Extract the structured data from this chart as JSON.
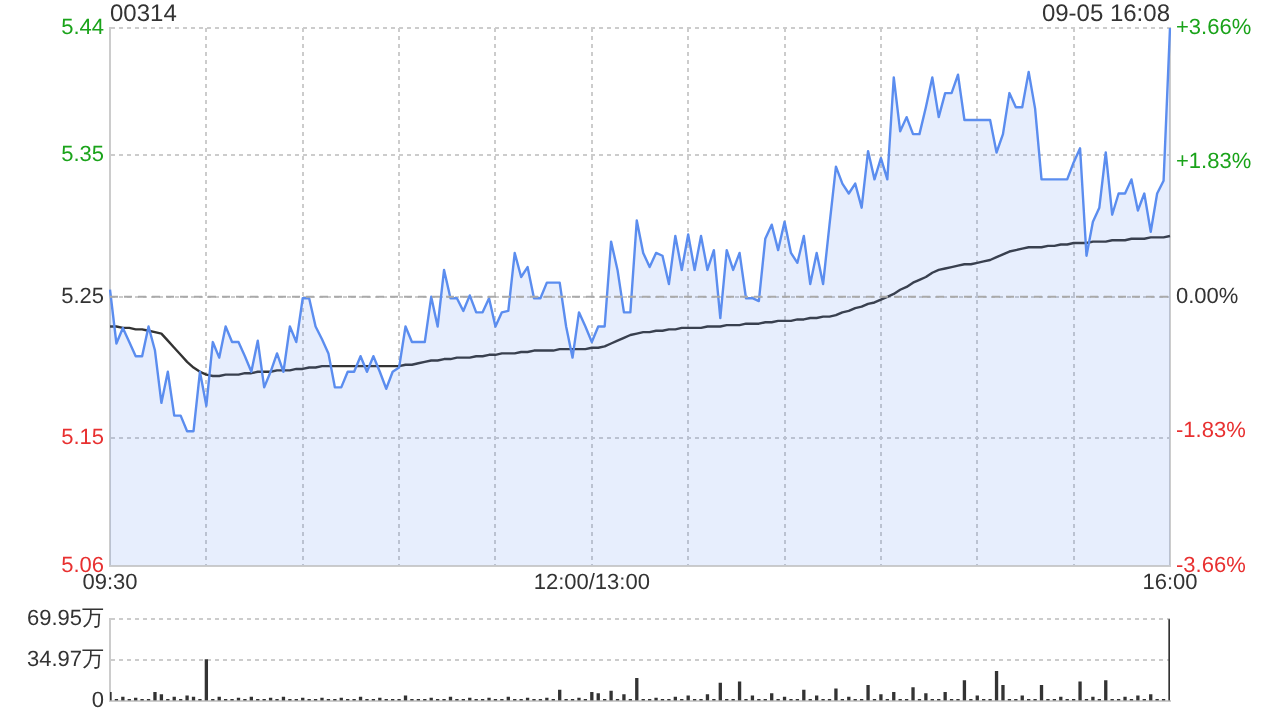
{
  "chart_data": [
    {
      "type": "line",
      "title": "00314",
      "annotations": [
        "09-05 16:08"
      ],
      "categories": [
        "09:30",
        null,
        null,
        null,
        null,
        null,
        null,
        null,
        null,
        null,
        null,
        null,
        null,
        null,
        null,
        null,
        null,
        null,
        null,
        null,
        null,
        null,
        null,
        null,
        null,
        null,
        null,
        null,
        null,
        null,
        null,
        null,
        null,
        null,
        null,
        null,
        null,
        null,
        null,
        null,
        null,
        null,
        null,
        null,
        null,
        null,
        null,
        null,
        null,
        null,
        null,
        null,
        null,
        null,
        null,
        null,
        null,
        null,
        null,
        null,
        null,
        null,
        null,
        null,
        null,
        null,
        null,
        null,
        null,
        null,
        null,
        null,
        null,
        null,
        null,
        "12:00/13:00",
        null,
        null,
        null,
        null,
        null,
        null,
        null,
        null,
        null,
        null,
        null,
        null,
        null,
        null,
        null,
        null,
        null,
        null,
        null,
        null,
        null,
        null,
        null,
        null,
        null,
        null,
        null,
        null,
        null,
        null,
        null,
        null,
        null,
        null,
        null,
        null,
        null,
        null,
        null,
        null,
        null,
        null,
        null,
        null,
        null,
        null,
        null,
        null,
        null,
        null,
        null,
        null,
        null,
        null,
        null,
        null,
        null,
        null,
        null,
        null,
        null,
        null,
        null,
        null,
        null,
        null,
        null,
        null,
        null,
        null,
        null,
        null,
        null,
        null,
        null,
        null,
        null,
        null,
        null,
        null,
        null,
        null,
        null,
        null,
        null,
        null,
        null,
        null,
        null,
        "16:00"
      ],
      "ylim": [
        5.06,
        5.44
      ],
      "yticks": [
        5.06,
        5.15,
        5.25,
        5.35,
        5.44
      ],
      "y2lim": [
        -3.66,
        3.66
      ],
      "y2ticks": [
        {
          "value": -3.66,
          "label": "-3.66%"
        },
        {
          "value": -1.83,
          "label": "-1.83%"
        },
        {
          "value": 0,
          "label": "0.00%"
        },
        {
          "value": 1.83,
          "label": "+1.83%"
        },
        {
          "value": 3.66,
          "label": "+3.66%"
        }
      ],
      "grid": true,
      "marker": "none",
      "ref_lines": [
        {
          "axis": "y",
          "value": 5.25,
          "line_style": "dashed",
          "color": "#aaaaaa"
        }
      ],
      "series": [
        {
          "type": "area",
          "color": "#5b8def",
          "values": [
            5.255,
            5.217,
            5.228,
            5.218,
            5.208,
            5.208,
            5.229,
            5.212,
            5.175,
            5.197,
            5.166,
            5.166,
            5.155,
            5.155,
            5.197,
            5.173,
            5.218,
            5.207,
            5.229,
            5.218,
            5.218,
            5.208,
            5.197,
            5.219,
            5.186,
            5.197,
            5.21,
            5.197,
            5.229,
            5.218,
            5.249,
            5.249,
            5.229,
            5.22,
            5.21,
            5.186,
            5.186,
            5.197,
            5.197,
            5.208,
            5.197,
            5.208,
            5.197,
            5.185,
            5.197,
            5.2,
            5.229,
            5.218,
            5.218,
            5.218,
            5.25,
            5.229,
            5.269,
            5.249,
            5.249,
            5.24,
            5.251,
            5.239,
            5.239,
            5.249,
            5.229,
            5.239,
            5.24,
            5.281,
            5.264,
            5.271,
            5.249,
            5.249,
            5.26,
            5.26,
            5.26,
            5.229,
            5.207,
            5.239,
            5.229,
            5.218,
            5.229,
            5.229,
            5.289,
            5.269,
            5.239,
            5.239,
            5.304,
            5.281,
            5.271,
            5.281,
            5.279,
            5.259,
            5.293,
            5.269,
            5.294,
            5.269,
            5.293,
            5.269,
            5.283,
            5.235,
            5.283,
            5.269,
            5.281,
            5.249,
            5.249,
            5.247,
            5.291,
            5.301,
            5.283,
            5.303,
            5.281,
            5.274,
            5.293,
            5.259,
            5.281,
            5.259,
            5.301,
            5.342,
            5.33,
            5.323,
            5.33,
            5.313,
            5.353,
            5.333,
            5.348,
            5.333,
            5.405,
            5.367,
            5.377,
            5.365,
            5.365,
            5.384,
            5.405,
            5.377,
            5.394,
            5.394,
            5.407,
            5.375,
            5.375,
            5.375,
            5.375,
            5.375,
            5.352,
            5.365,
            5.394,
            5.384,
            5.384,
            5.409,
            5.383,
            5.333,
            5.333,
            5.333,
            5.333,
            5.333,
            5.345,
            5.355,
            5.279,
            5.303,
            5.313,
            5.352,
            5.308,
            5.323,
            5.323,
            5.333,
            5.311,
            5.323,
            5.296,
            5.323,
            5.332,
            5.44
          ]
        },
        {
          "type": "line",
          "color": "#333333",
          "values": [
            5.229,
            5.229,
            5.228,
            5.228,
            5.227,
            5.227,
            5.226,
            5.225,
            5.224,
            5.219,
            5.214,
            5.209,
            5.204,
            5.2,
            5.197,
            5.195,
            5.194,
            5.194,
            5.195,
            5.195,
            5.195,
            5.196,
            5.196,
            5.197,
            5.197,
            5.197,
            5.198,
            5.198,
            5.198,
            5.199,
            5.199,
            5.2,
            5.2,
            5.201,
            5.201,
            5.201,
            5.201,
            5.201,
            5.201,
            5.201,
            5.201,
            5.201,
            5.201,
            5.201,
            5.201,
            5.201,
            5.202,
            5.202,
            5.203,
            5.204,
            5.205,
            5.205,
            5.206,
            5.206,
            5.207,
            5.207,
            5.207,
            5.208,
            5.208,
            5.209,
            5.209,
            5.21,
            5.21,
            5.21,
            5.211,
            5.211,
            5.212,
            5.212,
            5.212,
            5.212,
            5.213,
            5.213,
            5.213,
            5.213,
            5.213,
            5.214,
            5.214,
            5.215,
            5.217,
            5.219,
            5.221,
            5.223,
            5.224,
            5.225,
            5.225,
            5.226,
            5.226,
            5.227,
            5.227,
            5.228,
            5.228,
            5.228,
            5.228,
            5.229,
            5.229,
            5.229,
            5.23,
            5.23,
            5.23,
            5.231,
            5.231,
            5.231,
            5.232,
            5.232,
            5.233,
            5.233,
            5.233,
            5.234,
            5.234,
            5.235,
            5.235,
            5.236,
            5.236,
            5.237,
            5.239,
            5.24,
            5.242,
            5.243,
            5.245,
            5.246,
            5.248,
            5.25,
            5.252,
            5.255,
            5.257,
            5.26,
            5.262,
            5.264,
            5.267,
            5.269,
            5.27,
            5.271,
            5.272,
            5.273,
            5.273,
            5.274,
            5.275,
            5.276,
            5.278,
            5.28,
            5.282,
            5.283,
            5.284,
            5.285,
            5.285,
            5.285,
            5.286,
            5.286,
            5.287,
            5.287,
            5.288,
            5.288,
            5.288,
            5.289,
            5.289,
            5.289,
            5.29,
            5.29,
            5.29,
            5.291,
            5.291,
            5.291,
            5.292,
            5.292,
            5.292,
            5.293
          ]
        }
      ]
    },
    {
      "type": "bar",
      "color": "#333333",
      "tick_labels": "y",
      "grid": "y",
      "categories": [
        null,
        null,
        null,
        null,
        null,
        null,
        null,
        null,
        null,
        null,
        null,
        null,
        null,
        null,
        null,
        null,
        null,
        null,
        null,
        null,
        null,
        null,
        null,
        null,
        null,
        null,
        null,
        null,
        null,
        null,
        null,
        null,
        null,
        null,
        null,
        null,
        null,
        null,
        null,
        null,
        null,
        null,
        null,
        null,
        null,
        null,
        null,
        null,
        null,
        null,
        null,
        null,
        null,
        null,
        null,
        null,
        null,
        null,
        null,
        null,
        null,
        null,
        null,
        null,
        null,
        null,
        null,
        null,
        null,
        null,
        null,
        null,
        null,
        null,
        null,
        null,
        null,
        null,
        null,
        null,
        null,
        null,
        null,
        null,
        null,
        null,
        null,
        null,
        null,
        null,
        null,
        null,
        null,
        null,
        null,
        null,
        null,
        null,
        null,
        null,
        null,
        null,
        null,
        null,
        null,
        null,
        null,
        null,
        null,
        null,
        null,
        null,
        null,
        null,
        null,
        null,
        null,
        null,
        null,
        null,
        null,
        null,
        null,
        null,
        null,
        null,
        null,
        null,
        null,
        null,
        null,
        null,
        null,
        null,
        null,
        null,
        null,
        null,
        null,
        null,
        null,
        null,
        null,
        null,
        null,
        null,
        null,
        null,
        null,
        null,
        null,
        null,
        null,
        null,
        null,
        null,
        null,
        null,
        null,
        null,
        null,
        null,
        null,
        null,
        null,
        null
      ],
      "ylim": [
        0,
        69.95
      ],
      "yticks": [
        0,
        {
          "value": 34.97,
          "label": "34.97万"
        },
        {
          "value": 69.95,
          "label": "69.95万"
        }
      ],
      "values": [
        7,
        1,
        3,
        1,
        2,
        1,
        1,
        7,
        5,
        1,
        3,
        1,
        4,
        3,
        1,
        35,
        1,
        3,
        1,
        1,
        2,
        1,
        3,
        1,
        1,
        2,
        1,
        3,
        1,
        1,
        2,
        1,
        1,
        2,
        1,
        1,
        2,
        1,
        1,
        3,
        1,
        1,
        2,
        1,
        1,
        1,
        4,
        1,
        1,
        1,
        2,
        1,
        1,
        3,
        1,
        1,
        2,
        1,
        1,
        2,
        1,
        1,
        3,
        1,
        1,
        2,
        1,
        1,
        2,
        1,
        9,
        1,
        1,
        2,
        1,
        7,
        6,
        1,
        8,
        1,
        5,
        1,
        19,
        1,
        1,
        2,
        1,
        1,
        3,
        1,
        4,
        1,
        1,
        5,
        1,
        15,
        1,
        1,
        16,
        1,
        4,
        1,
        1,
        6,
        1,
        3,
        1,
        1,
        9,
        1,
        4,
        1,
        1,
        10,
        1,
        3,
        1,
        1,
        13,
        1,
        5,
        1,
        7,
        1,
        1,
        11,
        1,
        6,
        1,
        1,
        7,
        1,
        1,
        17,
        1,
        4,
        1,
        1,
        25,
        13,
        1,
        1,
        4,
        1,
        1,
        13,
        1,
        1,
        3,
        1,
        1,
        16,
        1,
        3,
        1,
        17,
        1,
        1,
        3,
        1,
        4,
        1,
        5,
        1,
        1,
        69.95
      ]
    }
  ]
}
